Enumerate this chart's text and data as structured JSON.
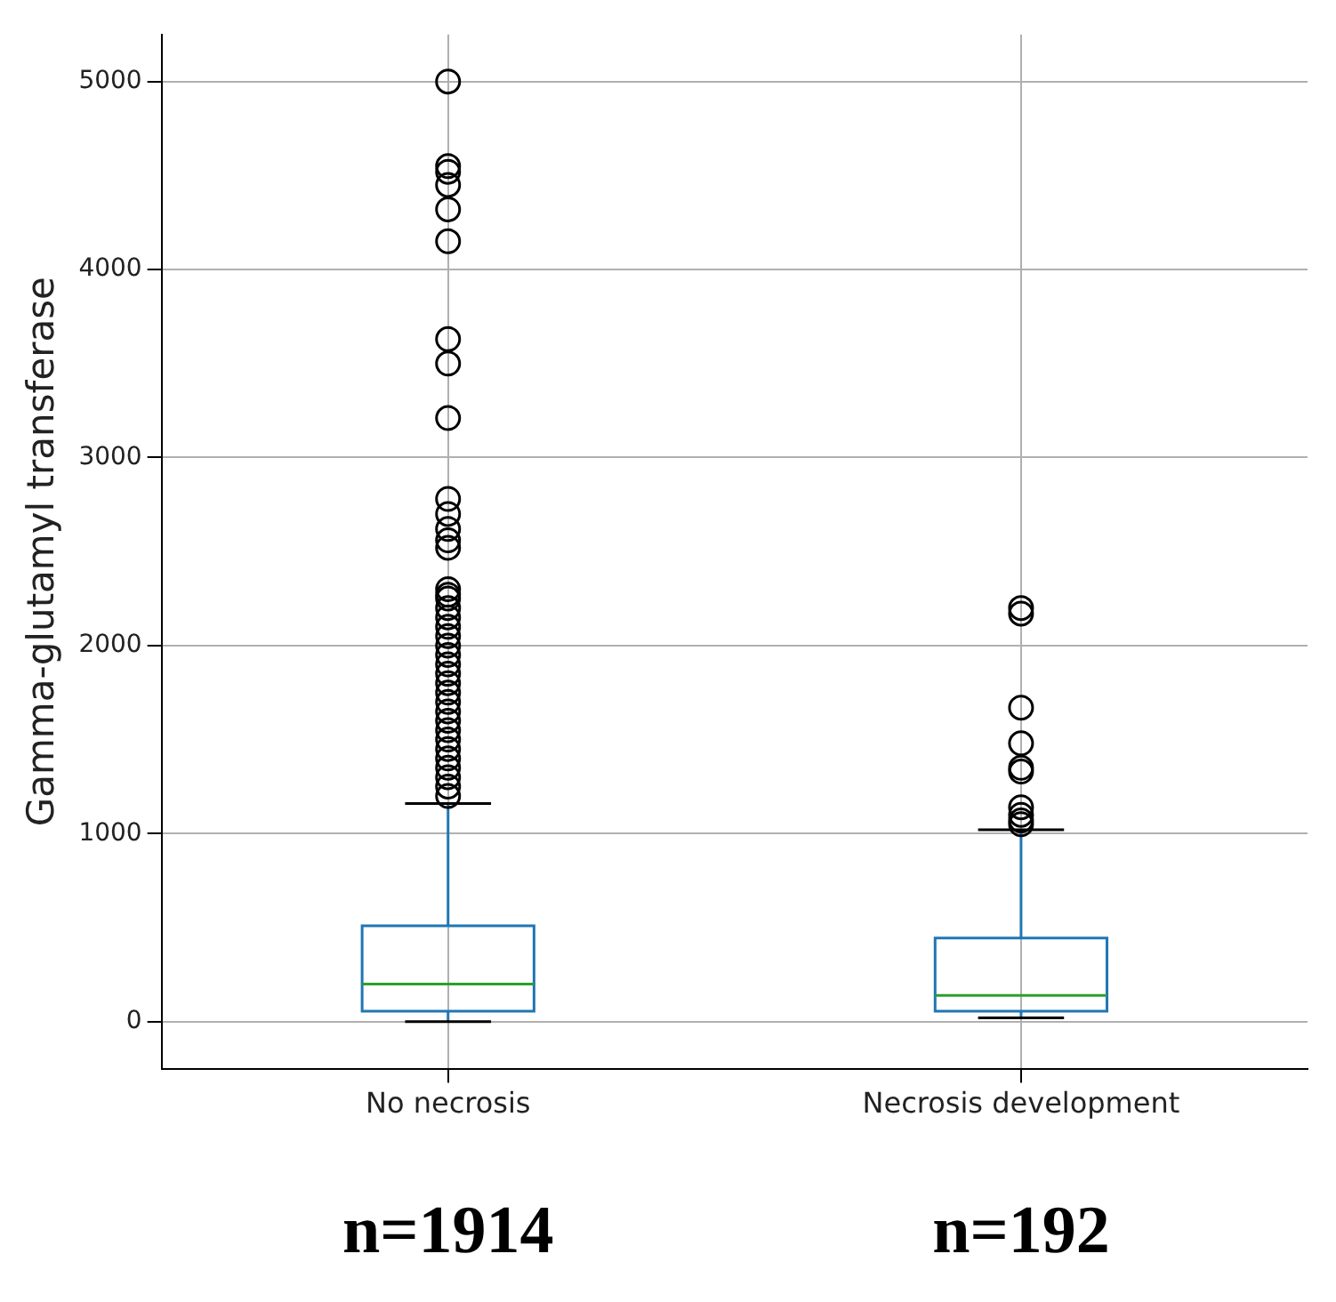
{
  "chart_data": {
    "type": "box",
    "ylabel": "Gamma-glutamyl transferase",
    "categories": [
      "No necrosis",
      "Necrosis development"
    ],
    "color": "#1f77b4",
    "boxes": [
      {
        "low": 0,
        "q1": 55,
        "median": 200,
        "q3": 510,
        "high": 1160,
        "outliers": [
          5000,
          4550,
          4520,
          4450,
          4320,
          4150,
          3630,
          3500,
          3210,
          2780,
          2700,
          2620,
          2560,
          2520,
          2300,
          2270,
          2250,
          2200,
          2150,
          2100,
          2050,
          2000,
          1950,
          1900,
          1850,
          1800,
          1750,
          1700,
          1650,
          1600,
          1550,
          1500,
          1450,
          1400,
          1350,
          1300,
          1250,
          1200
        ]
      },
      {
        "low": 20,
        "q1": 55,
        "median": 140,
        "q3": 445,
        "high": 1020,
        "outliers": [
          2200,
          2170,
          1670,
          1480,
          1350,
          1330,
          1140,
          1100,
          1070,
          1050
        ]
      }
    ],
    "ylim": [
      -250,
      5250
    ],
    "yticks": [
      0,
      1000,
      2000,
      3000,
      4000,
      5000
    ],
    "grid": true,
    "marker": "circle",
    "annotations": [
      "n=1914",
      "n=192"
    ]
  }
}
